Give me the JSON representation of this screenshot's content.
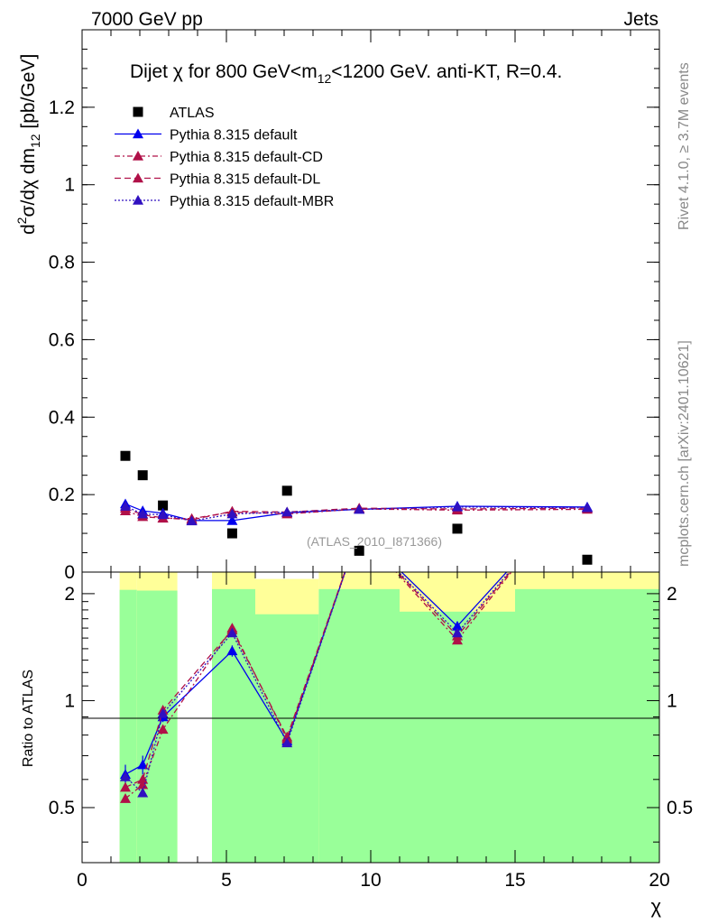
{
  "header": {
    "left": "7000 GeV pp",
    "right": "Jets",
    "side_top": "Rivet 4.1.0, ≥ 3.7M events",
    "side_bottom": "mcplots.cern.ch [arXiv:2401.10621]",
    "watermark": "(ATLAS_2010_I871366)"
  },
  "chart_data": [
    {
      "type": "scatter",
      "panel": "main",
      "title_parts": {
        "a": "Dijet χ for 800 GeV<m",
        "sub": "12",
        "b": "<1200 GeV.  anti-KT, R=0.4."
      },
      "ylabel_parts": {
        "d": "d",
        "sup": "2",
        "mid": "σ/dχ dm",
        "sub": "12",
        "unit": " [pb/GeV]"
      },
      "xlim": [
        0,
        20
      ],
      "ylim": [
        0,
        1.4
      ],
      "yticks": [
        {
          "v": 0.2,
          "label": "0.2"
        },
        {
          "v": 0.4,
          "label": "0.4"
        },
        {
          "v": 0.6,
          "label": "0.6"
        },
        {
          "v": 0.8,
          "label": "0.8"
        },
        {
          "v": 1.0,
          "label": "1"
        },
        {
          "v": 1.2,
          "label": "1.2"
        }
      ],
      "ytick_zero_label": "0",
      "legend": [
        "ATLAS",
        "Pythia 8.315 default",
        "Pythia 8.315 default-CD",
        "Pythia 8.315 default-DL",
        "Pythia 8.315 default-MBR"
      ],
      "series": [
        {
          "name": "ATLAS",
          "color": "#000000",
          "dash": "",
          "marker": "square",
          "x": [
            1.5,
            2.1,
            2.8,
            3.8,
            5.2,
            7.1,
            9.6,
            13.0,
            17.5
          ],
          "y": [
            0.3,
            0.25,
            0.172,
            null,
            0.1,
            0.21,
            0.055,
            0.112,
            0.032
          ]
        },
        {
          "name": "Pythia 8.315 default",
          "color": "#0000ee",
          "dash": "",
          "marker": "triangle",
          "x": [
            1.5,
            2.1,
            2.8,
            3.8,
            5.2,
            7.1,
            9.6,
            13.0,
            17.5
          ],
          "y": [
            0.176,
            0.158,
            0.152,
            0.133,
            0.133,
            0.153,
            0.162,
            0.17,
            0.168
          ],
          "err": [
            0.01,
            0.008,
            0.007,
            0.006,
            0.005,
            0.005,
            0.005,
            0.004,
            0.004
          ]
        },
        {
          "name": "Pythia 8.315 default-CD",
          "color": "#b01048",
          "dash": "6,3,2,3",
          "marker": "triangle",
          "x": [
            1.5,
            2.1,
            2.8,
            3.8,
            5.2,
            7.1,
            9.6,
            13.0,
            17.5
          ],
          "y": [
            0.158,
            0.143,
            0.139,
            0.138,
            0.155,
            0.15,
            0.163,
            0.16,
            0.162
          ]
        },
        {
          "name": "Pythia 8.315 default-DL",
          "color": "#b01048",
          "dash": "7,4",
          "marker": "triangle",
          "x": [
            1.5,
            2.1,
            2.8,
            3.8,
            5.2,
            7.1,
            9.6,
            13.0,
            17.5
          ],
          "y": [
            0.165,
            0.148,
            0.14,
            0.135,
            0.157,
            0.155,
            0.165,
            0.163,
            0.165
          ]
        },
        {
          "name": "Pythia 8.315 default-MBR",
          "color": "#3010c0",
          "dash": "2,2",
          "marker": "triangle",
          "x": [
            1.5,
            2.1,
            2.8,
            3.8,
            5.2,
            7.1,
            9.6,
            13.0,
            17.5
          ],
          "y": [
            0.17,
            0.15,
            0.148,
            0.132,
            0.15,
            0.155,
            0.162,
            0.168,
            0.166
          ]
        }
      ]
    },
    {
      "type": "line",
      "panel": "ratio",
      "ylabel": "Ratio to ATLAS",
      "xlabel": "χ",
      "xlim": [
        0,
        20
      ],
      "ylim": [
        0.35,
        2.3
      ],
      "yscale": "log",
      "xticks": [
        {
          "v": 0,
          "label": "0"
        },
        {
          "v": 5,
          "label": "5"
        },
        {
          "v": 10,
          "label": "10"
        },
        {
          "v": 15,
          "label": "15"
        },
        {
          "v": 20,
          "label": "20"
        }
      ],
      "yticks": [
        {
          "v": 0.5,
          "label": "0.5"
        },
        {
          "v": 1,
          "label": "1"
        },
        {
          "v": 2,
          "label": "2"
        }
      ],
      "bands": [
        {
          "x0": 1.3,
          "x1": 1.9,
          "green_lo": 0.0,
          "green_hi": 2.05,
          "yellow_lo": 0.0,
          "yellow_hi": 2.3
        },
        {
          "x0": 1.9,
          "x1": 3.3,
          "green_lo": 0.0,
          "green_hi": 2.04,
          "yellow_lo": 0.0,
          "yellow_hi": 2.3
        },
        {
          "x0": 4.5,
          "x1": 6.0,
          "green_lo": 0.0,
          "green_hi": 2.06,
          "yellow_lo": 0.0,
          "yellow_hi": 2.3
        },
        {
          "x0": 6.0,
          "x1": 8.2,
          "green_lo": 0.0,
          "green_hi": 1.75,
          "yellow_lo": 0.0,
          "yellow_hi": 2.2
        },
        {
          "x0": 8.2,
          "x1": 11.0,
          "green_lo": 0.0,
          "green_hi": 2.06,
          "yellow_lo": 0.0,
          "yellow_hi": 2.3
        },
        {
          "x0": 11.0,
          "x1": 15.0,
          "green_lo": 0.0,
          "green_hi": 1.78,
          "yellow_lo": 0.0,
          "yellow_hi": 2.3
        },
        {
          "x0": 15.0,
          "x1": 20.0,
          "green_lo": 0.0,
          "green_hi": 2.06,
          "yellow_lo": 0.0,
          "yellow_hi": 2.3
        }
      ],
      "series": [
        {
          "name": "Pythia 8.315 default",
          "color": "#0000ee",
          "dash": "",
          "x": [
            1.5,
            2.1,
            2.8,
            5.2,
            7.1,
            9.6,
            13.0,
            16.0
          ],
          "y": [
            0.62,
            0.66,
            0.9,
            1.38,
            0.77,
            3.0,
            1.62,
            3.0
          ],
          "err": [
            0.04,
            0.04,
            0.03,
            0.05,
            0.02,
            0,
            0.05,
            0
          ]
        },
        {
          "name": "Pythia 8.315 default-CD",
          "color": "#b01048",
          "dash": "6,3,2,3",
          "x": [
            1.5,
            2.1,
            2.8,
            5.2,
            7.1,
            9.6,
            13.0,
            16.0
          ],
          "y": [
            0.53,
            0.58,
            0.83,
            1.6,
            0.78,
            3.0,
            1.48,
            3.0
          ]
        },
        {
          "name": "Pythia 8.315 default-DL",
          "color": "#b01048",
          "dash": "7,4",
          "x": [
            1.5,
            2.1,
            2.8,
            5.2,
            7.1,
            9.6,
            13.0,
            16.0
          ],
          "y": [
            0.57,
            0.6,
            0.94,
            1.58,
            0.79,
            3.0,
            1.52,
            3.0
          ]
        },
        {
          "name": "Pythia 8.315 default-MBR",
          "color": "#3010c0",
          "dash": "2,2",
          "x": [
            1.5,
            2.1,
            2.8,
            5.2,
            7.1,
            9.6,
            13.0,
            16.0
          ],
          "y": [
            0.61,
            0.55,
            0.92,
            1.55,
            0.76,
            3.0,
            1.55,
            3.0
          ]
        }
      ]
    }
  ]
}
